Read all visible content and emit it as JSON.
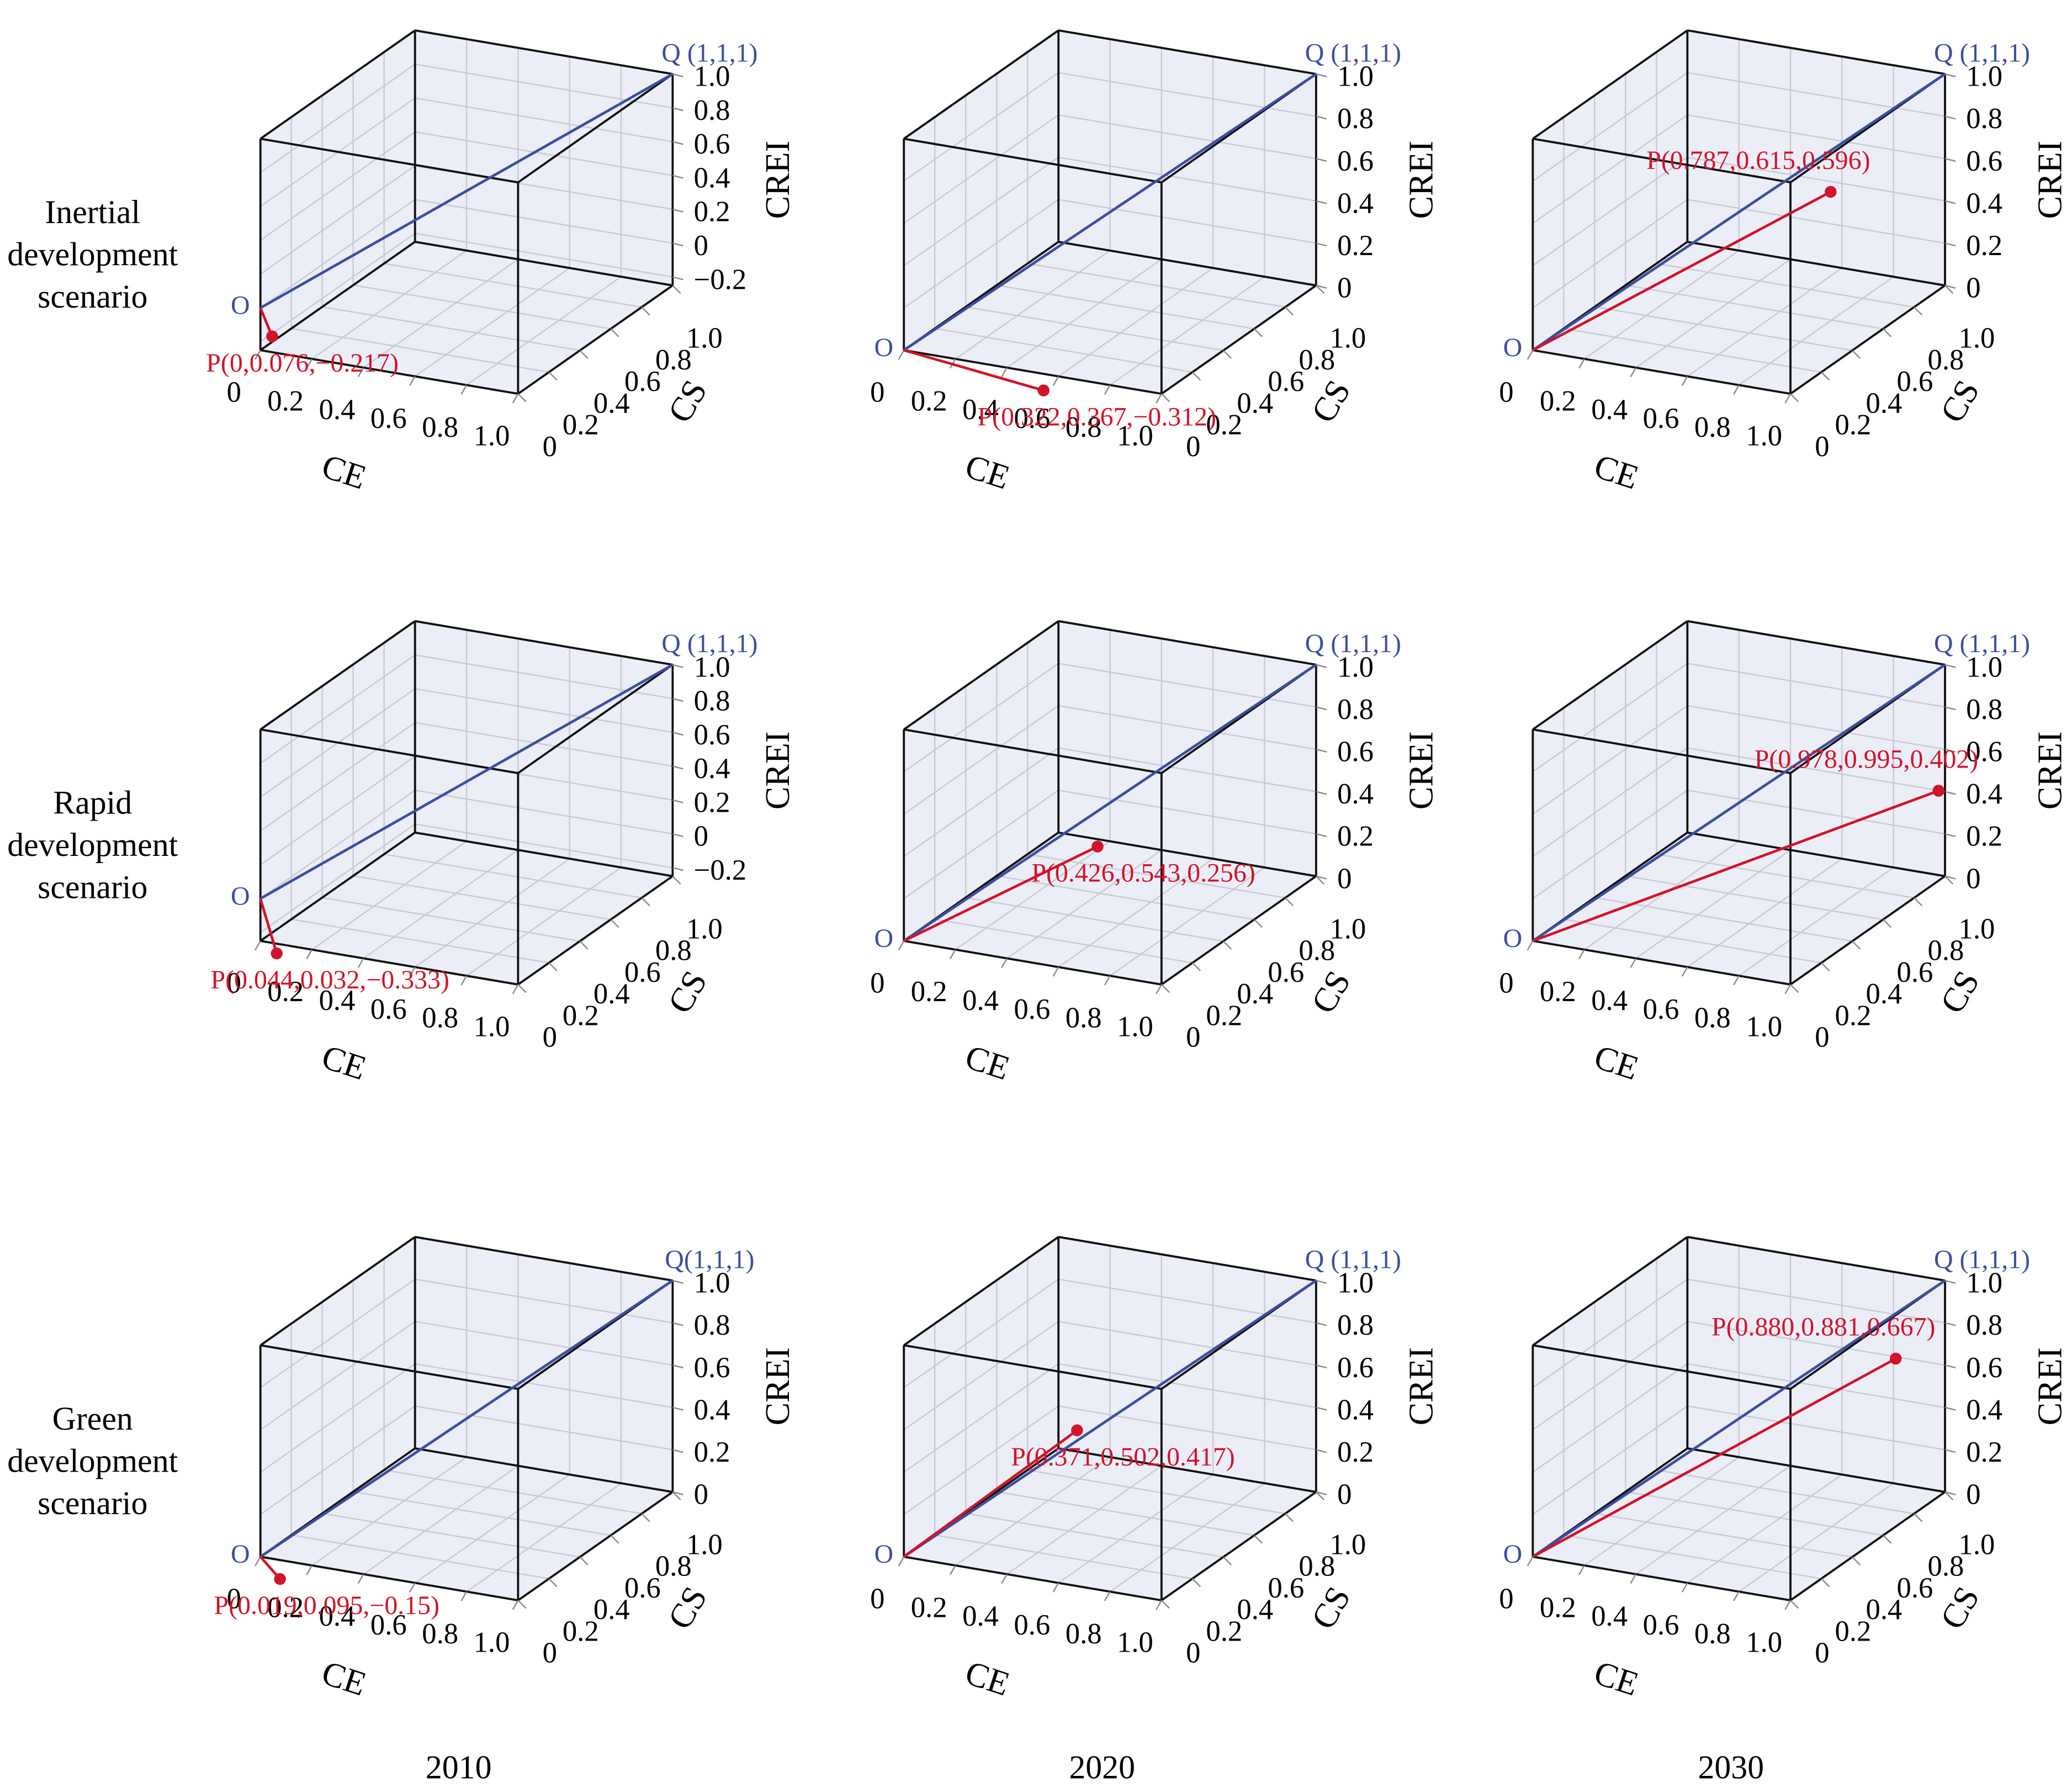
{
  "row_labels": [
    [
      "Inertial",
      "development",
      "scenario"
    ],
    [
      "Rapid",
      "development",
      "scenario"
    ],
    [
      "Green",
      "development",
      "scenario"
    ]
  ],
  "column_labels": [
    "2010",
    "2020",
    "2030"
  ],
  "chart_data": [
    {
      "type": "line3d",
      "origin_label": "O",
      "origin": [
        0,
        0,
        0
      ],
      "target_label": "Q (1,1,1)",
      "target": [
        1,
        1,
        1
      ],
      "point_label": "P(0,0.076,−0.217)",
      "point": [
        0,
        0.076,
        -0.217
      ],
      "xlabel": "CE",
      "ylabel": "CS",
      "zlabel": "CREI",
      "xlim": [
        0,
        1
      ],
      "ylim": [
        0,
        1
      ],
      "zlim": [
        -0.25,
        1
      ],
      "xticks": [
        0,
        0.2,
        0.4,
        0.6,
        0.8,
        {
          "value": 1,
          "label": "1.0"
        }
      ],
      "yticks": [
        0,
        0.2,
        0.4,
        0.6,
        0.8,
        {
          "value": 1,
          "label": "1.0"
        }
      ],
      "zticks": [
        {
          "value": -0.2,
          "label": "−0.2"
        },
        0,
        0.2,
        0.4,
        0.6,
        0.8,
        {
          "value": 1,
          "label": "1.0"
        }
      ],
      "grid": true
    },
    {
      "type": "line3d",
      "origin_label": "O",
      "origin": [
        0,
        0,
        0
      ],
      "target_label": "Q (1,1,1)",
      "target": [
        1,
        1,
        1
      ],
      "point_label": "P(0.322,0.367,−0.312)",
      "point": [
        0.322,
        0.367,
        -0.312
      ],
      "xlabel": "CE",
      "ylabel": "CS",
      "zlabel": "CREI",
      "xlim": [
        0,
        1
      ],
      "ylim": [
        0,
        1
      ],
      "zlim": [
        0,
        1
      ],
      "xticks": [
        0,
        0.2,
        0.4,
        0.6,
        0.8,
        {
          "value": 1,
          "label": "1.0"
        }
      ],
      "yticks": [
        0,
        0.2,
        0.4,
        0.6,
        0.8,
        {
          "value": 1,
          "label": "1.0"
        }
      ],
      "zticks": [
        0,
        0.2,
        0.4,
        0.6,
        0.8,
        {
          "value": 1,
          "label": "1.0"
        }
      ],
      "grid": true
    },
    {
      "type": "line3d",
      "origin_label": "O",
      "origin": [
        0,
        0,
        0
      ],
      "target_label": "Q (1,1,1)",
      "target": [
        1,
        1,
        1
      ],
      "point_label": "P(0.787,0.615,0.596)",
      "point": [
        0.787,
        0.615,
        0.596
      ],
      "xlabel": "CE",
      "ylabel": "CS",
      "zlabel": "CREI",
      "xlim": [
        0,
        1
      ],
      "ylim": [
        0,
        1
      ],
      "zlim": [
        0,
        1
      ],
      "xticks": [
        0,
        0.2,
        0.4,
        0.6,
        0.8,
        {
          "value": 1,
          "label": "1.0"
        }
      ],
      "yticks": [
        0,
        0.2,
        0.4,
        0.6,
        0.8,
        {
          "value": 1,
          "label": "1.0"
        }
      ],
      "zticks": [
        0,
        0.2,
        0.4,
        0.6,
        0.8,
        {
          "value": 1,
          "label": "1.0"
        }
      ],
      "grid": true
    },
    {
      "type": "line3d",
      "origin_label": "O",
      "origin": [
        0,
        0,
        0
      ],
      "target_label": "Q (1,1,1)",
      "target": [
        1,
        1,
        1
      ],
      "point_label": "P(0.044,0.032,−0.333)",
      "point": [
        0.044,
        0.032,
        -0.333
      ],
      "xlabel": "CE",
      "ylabel": "CS",
      "zlabel": "CREI",
      "xlim": [
        0,
        1
      ],
      "ylim": [
        0,
        1
      ],
      "zlim": [
        -0.25,
        1
      ],
      "xticks": [
        0,
        0.2,
        0.4,
        0.6,
        0.8,
        {
          "value": 1,
          "label": "1.0"
        }
      ],
      "yticks": [
        0,
        0.2,
        0.4,
        0.6,
        0.8,
        {
          "value": 1,
          "label": "1.0"
        }
      ],
      "zticks": [
        {
          "value": -0.2,
          "label": "−0.2"
        },
        0,
        0.2,
        0.4,
        0.6,
        0.8,
        {
          "value": 1,
          "label": "1.0"
        }
      ],
      "grid": true
    },
    {
      "type": "line3d",
      "origin_label": "O",
      "origin": [
        0,
        0,
        0
      ],
      "target_label": "Q (1,1,1)",
      "target": [
        1,
        1,
        1
      ],
      "point_label": "P(0.426,0.543,0.256)",
      "point": [
        0.426,
        0.543,
        0.256
      ],
      "xlabel": "CE",
      "ylabel": "CS",
      "zlabel": "CREI",
      "xlim": [
        0,
        1
      ],
      "ylim": [
        0,
        1
      ],
      "zlim": [
        0,
        1
      ],
      "xticks": [
        0,
        0.2,
        0.4,
        0.6,
        0.8,
        {
          "value": 1,
          "label": "1.0"
        }
      ],
      "yticks": [
        0,
        0.2,
        0.4,
        0.6,
        0.8,
        {
          "value": 1,
          "label": "1.0"
        }
      ],
      "zticks": [
        0,
        0.2,
        0.4,
        0.6,
        0.8,
        {
          "value": 1,
          "label": "1.0"
        }
      ],
      "grid": true
    },
    {
      "type": "line3d",
      "origin_label": "O",
      "origin": [
        0,
        0,
        0
      ],
      "target_label": "Q (1,1,1)",
      "target": [
        1,
        1,
        1
      ],
      "point_label": "P(0.978,0.995,0.402)",
      "point": [
        0.978,
        0.995,
        0.402
      ],
      "xlabel": "CE",
      "ylabel": "CS",
      "zlabel": "CREI",
      "xlim": [
        0,
        1
      ],
      "ylim": [
        0,
        1
      ],
      "zlim": [
        0,
        1
      ],
      "xticks": [
        0,
        0.2,
        0.4,
        0.6,
        0.8,
        {
          "value": 1,
          "label": "1.0"
        }
      ],
      "yticks": [
        0,
        0.2,
        0.4,
        0.6,
        0.8,
        {
          "value": 1,
          "label": "1.0"
        }
      ],
      "zticks": [
        0,
        0.2,
        0.4,
        0.6,
        0.8,
        {
          "value": 1,
          "label": "1.0"
        }
      ],
      "grid": true
    },
    {
      "type": "line3d",
      "origin_label": "O",
      "origin": [
        0,
        0,
        0
      ],
      "target_label": "Q(1,1,1)",
      "target": [
        1,
        1,
        1
      ],
      "point_label": "P(0.019,0.095,−0.15)",
      "point": [
        0.019,
        0.095,
        -0.15
      ],
      "xlabel": "CE",
      "ylabel": "CS",
      "zlabel": "CREI",
      "xlim": [
        0,
        1
      ],
      "ylim": [
        0,
        1
      ],
      "zlim": [
        0,
        1
      ],
      "xticks": [
        0,
        0.2,
        0.4,
        0.6,
        0.8,
        {
          "value": 1,
          "label": "1.0"
        }
      ],
      "yticks": [
        0,
        0.2,
        0.4,
        0.6,
        0.8,
        {
          "value": 1,
          "label": "1.0"
        }
      ],
      "zticks": [
        0,
        0.2,
        0.4,
        0.6,
        0.8,
        {
          "value": 1,
          "label": "1.0"
        }
      ],
      "grid": true
    },
    {
      "type": "line3d",
      "origin_label": "O",
      "origin": [
        0,
        0,
        0
      ],
      "target_label": "Q (1,1,1)",
      "target": [
        1,
        1,
        1
      ],
      "point_label": "P(0.371,0.502,0.417)",
      "point": [
        0.371,
        0.502,
        0.417
      ],
      "xlabel": "CE",
      "ylabel": "CS",
      "zlabel": "CREI",
      "xlim": [
        0,
        1
      ],
      "ylim": [
        0,
        1
      ],
      "zlim": [
        0,
        1
      ],
      "xticks": [
        0,
        0.2,
        0.4,
        0.6,
        0.8,
        {
          "value": 1,
          "label": "1.0"
        }
      ],
      "yticks": [
        0,
        0.2,
        0.4,
        0.6,
        0.8,
        {
          "value": 1,
          "label": "1.0"
        }
      ],
      "zticks": [
        0,
        0.2,
        0.4,
        0.6,
        0.8,
        {
          "value": 1,
          "label": "1.0"
        }
      ],
      "grid": true
    },
    {
      "type": "line3d",
      "origin_label": "O",
      "origin": [
        0,
        0,
        0
      ],
      "target_label": "Q (1,1,1)",
      "target": [
        1,
        1,
        1
      ],
      "point_label": "P(0.880,0.881,0.667)",
      "point": [
        0.88,
        0.881,
        0.667
      ],
      "xlabel": "CE",
      "ylabel": "CS",
      "zlabel": "CREI",
      "xlim": [
        0,
        1
      ],
      "ylim": [
        0,
        1
      ],
      "zlim": [
        0,
        1
      ],
      "xticks": [
        0,
        0.2,
        0.4,
        0.6,
        0.8,
        {
          "value": 1,
          "label": "1.0"
        }
      ],
      "yticks": [
        0,
        0.2,
        0.4,
        0.6,
        0.8,
        {
          "value": 1,
          "label": "1.0"
        }
      ],
      "zticks": [
        0,
        0.2,
        0.4,
        0.6,
        0.8,
        {
          "value": 1,
          "label": "1.0"
        }
      ],
      "grid": true
    }
  ]
}
